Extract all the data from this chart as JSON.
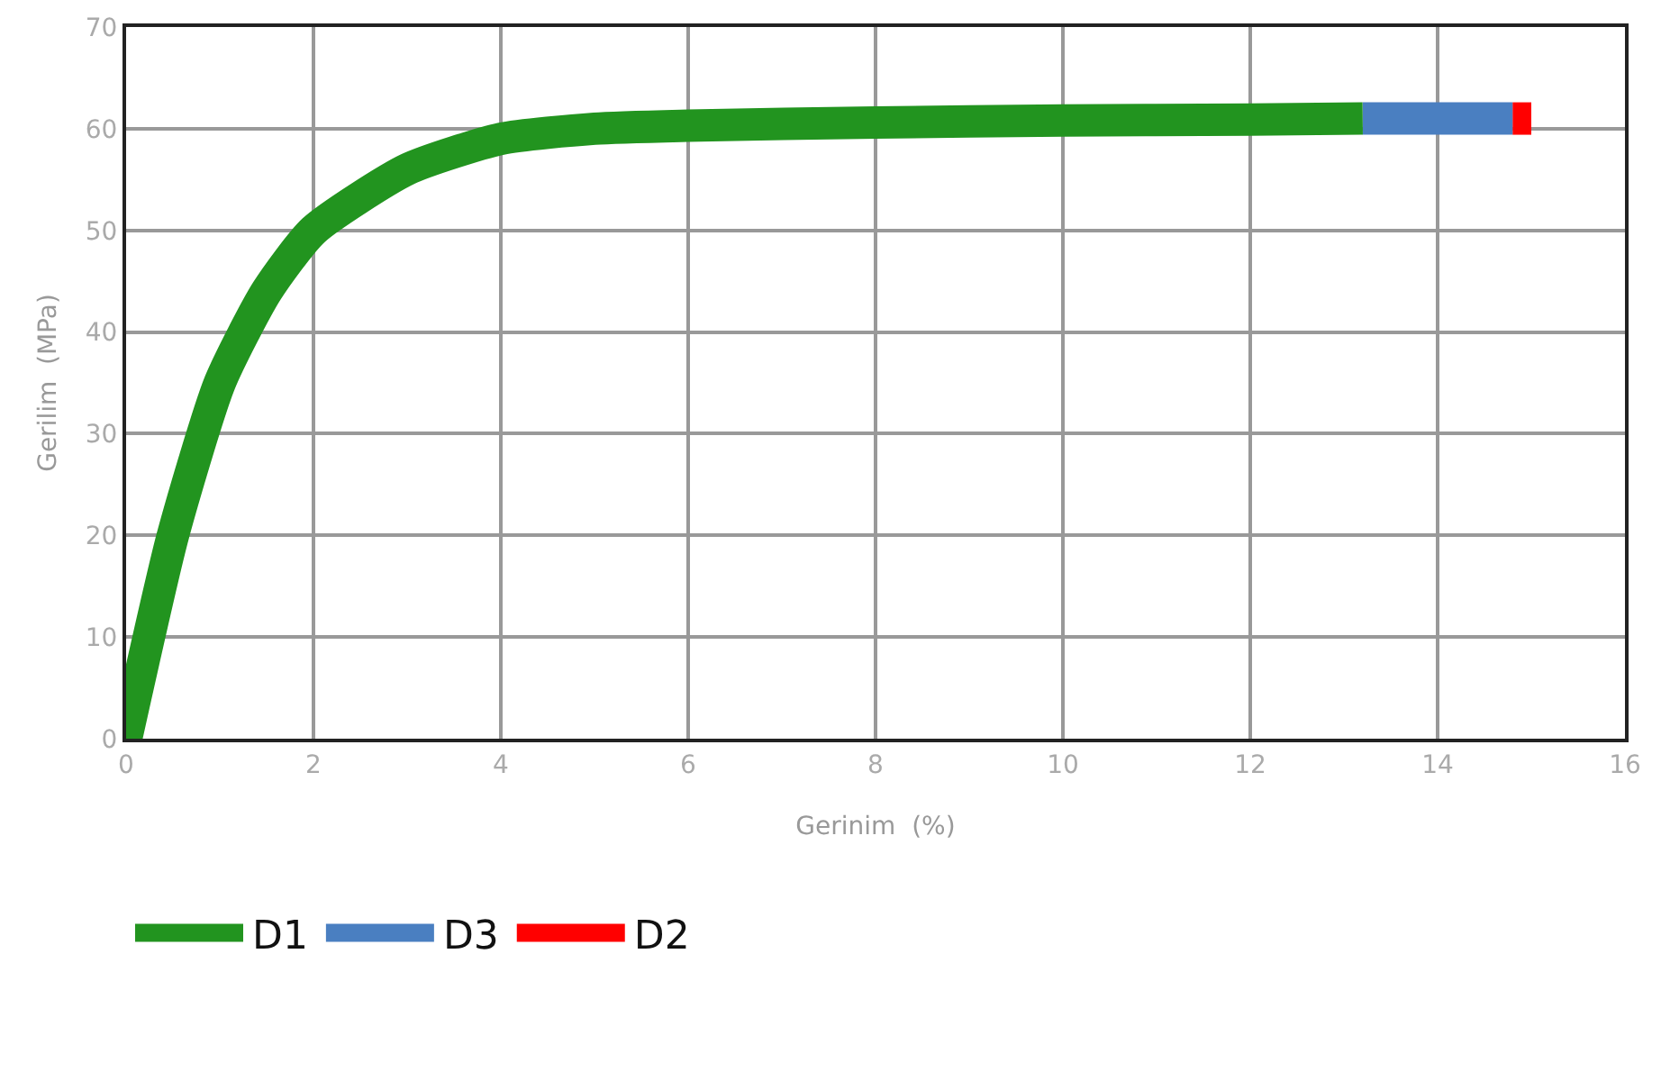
{
  "chart_data": {
    "type": "line",
    "xlabel": "Gerinim  (%)",
    "ylabel": "Gerilim  (MPa)",
    "xlim": [
      0,
      16
    ],
    "xticks": [
      0,
      2,
      4,
      6,
      8,
      10,
      12,
      14,
      16
    ],
    "ylim": [
      0,
      70
    ],
    "yticks": [
      0,
      10,
      20,
      30,
      40,
      50,
      60,
      70
    ],
    "grid": true,
    "legend": "bottom",
    "marker": "none",
    "line_style": "solid",
    "series": [
      {
        "name": "D2",
        "color": "#ff0000",
        "x": [
          14.8,
          15
        ],
        "values": [
          61,
          61
        ]
      },
      {
        "name": "D3",
        "color": "#4a7fc1",
        "x": [
          13.2,
          14.8
        ],
        "values": [
          61,
          61
        ]
      },
      {
        "name": "D1",
        "color": "#22941f",
        "x": [
          0,
          0.5,
          1,
          1.5,
          2,
          3,
          4,
          5,
          6,
          8,
          10,
          12,
          13.2
        ],
        "values": [
          0,
          20,
          35,
          44,
          50,
          56,
          59,
          60,
          60.3,
          60.6,
          60.8,
          60.9,
          61
        ]
      }
    ]
  }
}
